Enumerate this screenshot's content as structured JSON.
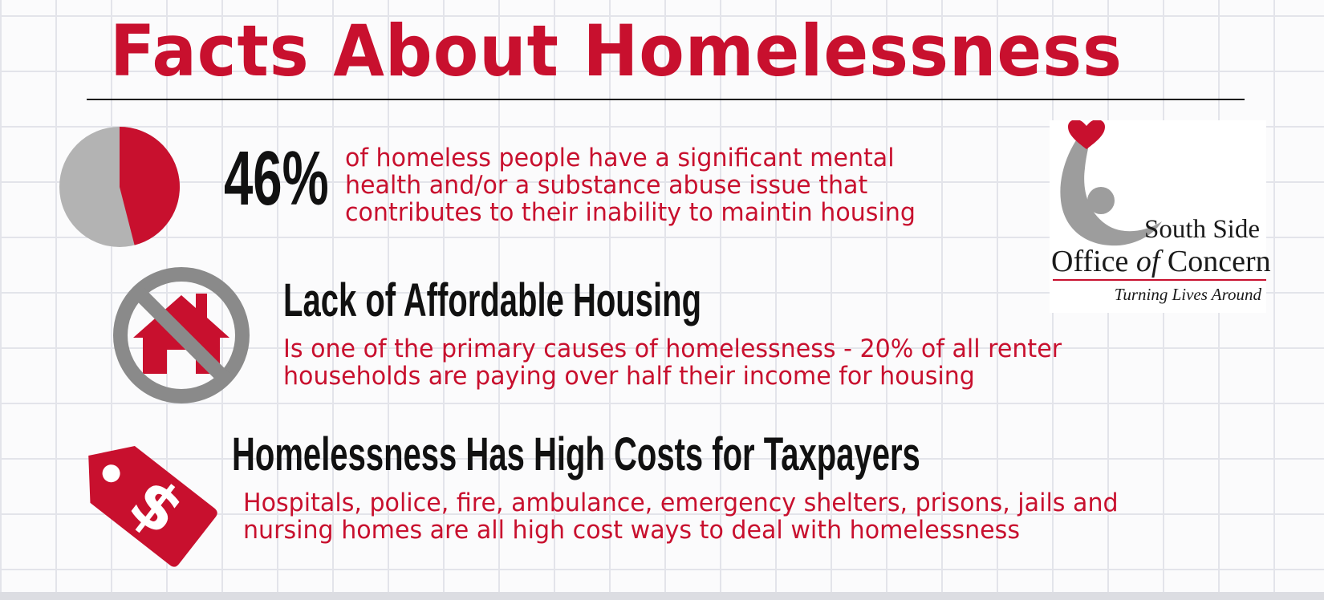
{
  "title": "Facts About Homelessness",
  "stat": {
    "value_text": "46%",
    "fraction": 0.46,
    "description_lines": [
      "of homeless people have a significant mental",
      "health and/or a substance abuse issue that",
      "contributes to their inability to maintin housing"
    ]
  },
  "housing": {
    "heading": "Lack of Affordable Housing",
    "description_lines": [
      "Is one of the primary causes of homelessness - 20% of all renter",
      "households are paying over half their income for housing"
    ]
  },
  "costs": {
    "heading": "Homelessness Has High Costs for Taxpayers",
    "description_lines": [
      "Hospitals, police, fire, ambulance, emergency shelters, prisons, jails and",
      "nursing homes are all high cost ways to deal with homelessness"
    ]
  },
  "logo": {
    "line1": "South Side",
    "line2_part1": "Office ",
    "line2_part2": "of",
    "line2_part3": " Concern",
    "tagline": "Turning Lives Around"
  },
  "icons": {
    "pie": "pie-chart-icon",
    "no_house": "no-house-icon",
    "price_tag": "dollar-price-tag-icon",
    "logo_mark": "heart-person-icon"
  },
  "colors": {
    "accent": "#c8102e",
    "pie_remainder": "#b3b3b3",
    "prohibition": "#8a8a8a",
    "heading_text": "#111111"
  }
}
